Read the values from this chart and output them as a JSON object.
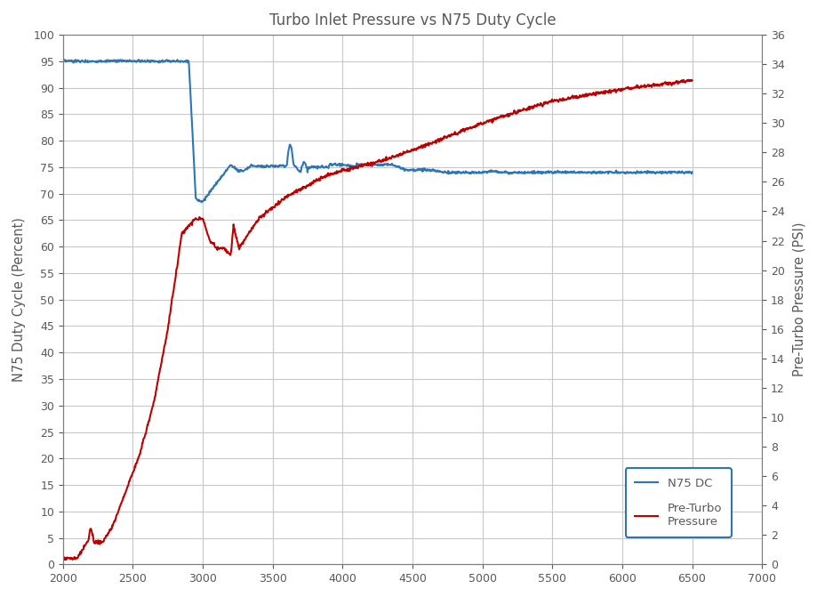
{
  "title": "Turbo Inlet Pressure vs N75 Duty Cycle",
  "xlabel": "",
  "ylabel_left": "N75 Duty Cycle (Percent)",
  "ylabel_right": "Pre-Turbo Pressure (PSI)",
  "xlim": [
    2000,
    7000
  ],
  "ylim_left": [
    0,
    100
  ],
  "ylim_right": [
    0,
    36
  ],
  "xticks": [
    2000,
    2500,
    3000,
    3500,
    4000,
    4500,
    5000,
    5500,
    6000,
    6500,
    7000
  ],
  "yticks_left": [
    0,
    5,
    10,
    15,
    20,
    25,
    30,
    35,
    40,
    45,
    50,
    55,
    60,
    65,
    70,
    75,
    80,
    85,
    90,
    95,
    100
  ],
  "yticks_right": [
    0,
    2,
    4,
    6,
    8,
    10,
    12,
    14,
    16,
    18,
    20,
    22,
    24,
    26,
    28,
    30,
    32,
    34,
    36
  ],
  "blue_color": "#2E75B6",
  "red_color": "#C00000",
  "legend_label_blue": "N75 DC",
  "legend_label_red": "Pre-Turbo\nPressure",
  "background_color": "#FFFFFF",
  "grid_color": "#C8C8C8",
  "title_color": "#595959",
  "axis_label_color": "#595959",
  "tick_label_color": "#595959",
  "legend_edge_color": "#2E75B6",
  "outer_border_color": "#7F7F7F"
}
